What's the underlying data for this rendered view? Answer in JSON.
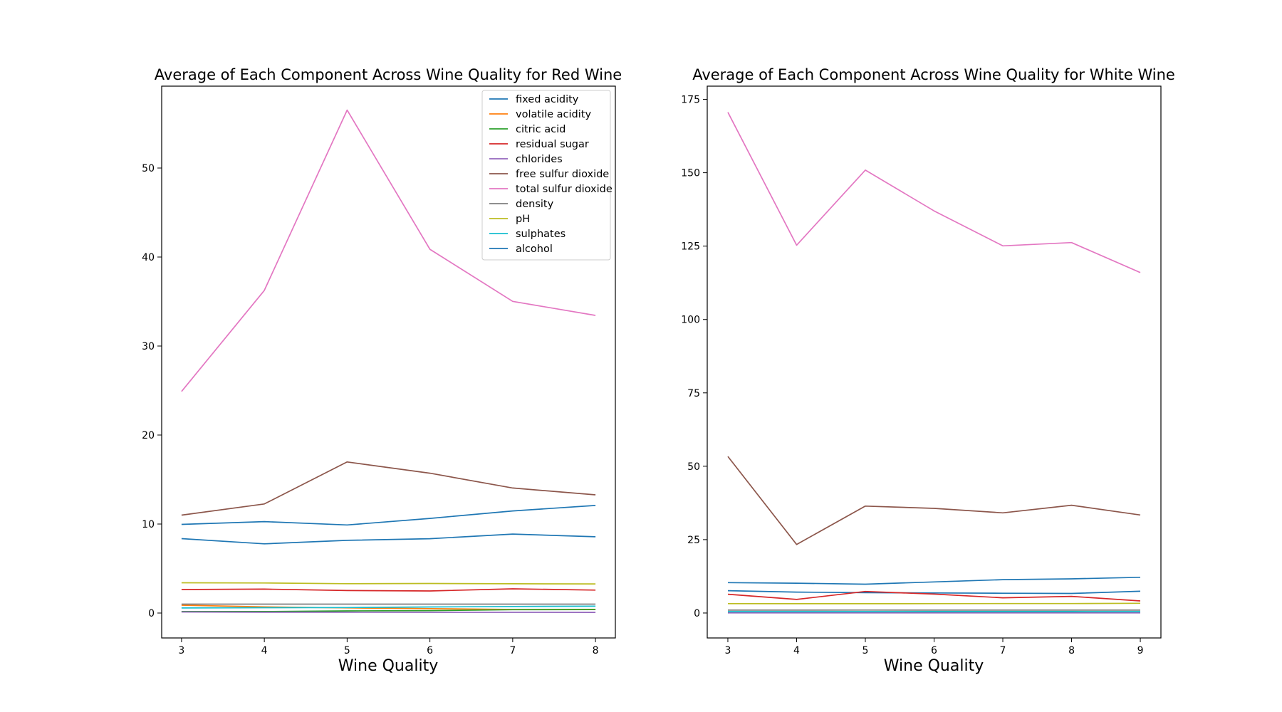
{
  "chart_data": [
    {
      "type": "line",
      "title": "Average of Each Component Across Wine Quality for Red Wine",
      "xlabel": "Wine Quality",
      "ylabel": "",
      "x": [
        3,
        4,
        5,
        6,
        7,
        8
      ],
      "xticks": [
        "3",
        "4",
        "5",
        "6",
        "7",
        "8"
      ],
      "xlim": [
        2.76,
        8.24
      ],
      "ylim": [
        -2.8,
        59.2
      ],
      "yticks": [
        "0",
        "10",
        "20",
        "30",
        "40",
        "50"
      ],
      "ytick_values": [
        0,
        10,
        20,
        30,
        40,
        50
      ],
      "grid": false,
      "legend": "top-right",
      "series": [
        {
          "name": "fixed acidity",
          "color": "#1f77b4",
          "values": [
            8.36,
            7.78,
            8.17,
            8.35,
            8.87,
            8.57
          ]
        },
        {
          "name": "volatile acidity",
          "color": "#ff7f0e",
          "values": [
            0.88,
            0.69,
            0.58,
            0.5,
            0.4,
            0.42
          ]
        },
        {
          "name": "citric acid",
          "color": "#2ca02c",
          "values": [
            0.17,
            0.17,
            0.24,
            0.27,
            0.38,
            0.39
          ]
        },
        {
          "name": "residual sugar",
          "color": "#d62728",
          "values": [
            2.64,
            2.69,
            2.53,
            2.48,
            2.72,
            2.58
          ]
        },
        {
          "name": "chlorides",
          "color": "#9467bd",
          "values": [
            0.12,
            0.09,
            0.09,
            0.08,
            0.08,
            0.07
          ]
        },
        {
          "name": "free sulfur dioxide",
          "color": "#8c564b",
          "values": [
            11.0,
            12.26,
            16.98,
            15.71,
            14.05,
            13.28
          ]
        },
        {
          "name": "total sulfur dioxide",
          "color": "#e377c2",
          "values": [
            24.9,
            36.25,
            56.51,
            40.87,
            35.02,
            33.44
          ]
        },
        {
          "name": "density",
          "color": "#7f7f7f",
          "values": [
            1.0,
            1.0,
            1.0,
            1.0,
            1.0,
            1.0
          ]
        },
        {
          "name": "pH",
          "color": "#bcbd22",
          "values": [
            3.4,
            3.38,
            3.3,
            3.32,
            3.29,
            3.27
          ]
        },
        {
          "name": "sulphates",
          "color": "#17becf",
          "values": [
            0.57,
            0.6,
            0.62,
            0.68,
            0.74,
            0.77
          ]
        },
        {
          "name": "alcohol",
          "color": "#1f77b4",
          "values": [
            9.96,
            10.27,
            9.9,
            10.63,
            11.47,
            12.09
          ]
        }
      ]
    },
    {
      "type": "line",
      "title": "Average of Each Component Across Wine Quality for White Wine",
      "xlabel": "Wine Quality",
      "ylabel": "",
      "x": [
        3,
        4,
        5,
        6,
        7,
        8,
        9
      ],
      "xticks": [
        "3",
        "4",
        "5",
        "6",
        "7",
        "8",
        "9"
      ],
      "xlim": [
        2.7,
        9.3
      ],
      "ylim": [
        -8.5,
        179.5
      ],
      "yticks": [
        "0",
        "25",
        "50",
        "75",
        "100",
        "125",
        "150",
        "175"
      ],
      "ytick_values": [
        0,
        25,
        50,
        75,
        100,
        125,
        150,
        175
      ],
      "grid": false,
      "legend": "none",
      "series": [
        {
          "name": "fixed acidity",
          "color": "#1f77b4",
          "values": [
            7.6,
            7.13,
            6.93,
            6.84,
            6.73,
            6.66,
            7.42
          ]
        },
        {
          "name": "volatile acidity",
          "color": "#ff7f0e",
          "values": [
            0.33,
            0.38,
            0.3,
            0.26,
            0.26,
            0.28,
            0.3
          ]
        },
        {
          "name": "citric acid",
          "color": "#2ca02c",
          "values": [
            0.34,
            0.3,
            0.34,
            0.34,
            0.33,
            0.33,
            0.39
          ]
        },
        {
          "name": "residual sugar",
          "color": "#d62728",
          "values": [
            6.39,
            4.63,
            7.33,
            6.44,
            5.19,
            5.67,
            4.12
          ]
        },
        {
          "name": "chlorides",
          "color": "#9467bd",
          "values": [
            0.05,
            0.05,
            0.05,
            0.05,
            0.04,
            0.04,
            0.03
          ]
        },
        {
          "name": "free sulfur dioxide",
          "color": "#8c564b",
          "values": [
            53.33,
            23.36,
            36.43,
            35.65,
            34.13,
            36.72,
            33.4
          ]
        },
        {
          "name": "total sulfur dioxide",
          "color": "#e377c2",
          "values": [
            170.6,
            125.3,
            150.9,
            137.0,
            125.1,
            126.2,
            116.0
          ]
        },
        {
          "name": "density",
          "color": "#7f7f7f",
          "values": [
            0.99,
            0.99,
            1.0,
            0.99,
            0.99,
            0.99,
            0.99
          ]
        },
        {
          "name": "pH",
          "color": "#bcbd22",
          "values": [
            3.19,
            3.18,
            3.17,
            3.19,
            3.21,
            3.22,
            3.31
          ]
        },
        {
          "name": "sulphates",
          "color": "#17becf",
          "values": [
            0.47,
            0.48,
            0.48,
            0.49,
            0.5,
            0.49,
            0.47
          ]
        },
        {
          "name": "alcohol",
          "color": "#1f77b4",
          "values": [
            10.35,
            10.15,
            9.81,
            10.58,
            11.37,
            11.64,
            12.18
          ]
        }
      ]
    }
  ]
}
